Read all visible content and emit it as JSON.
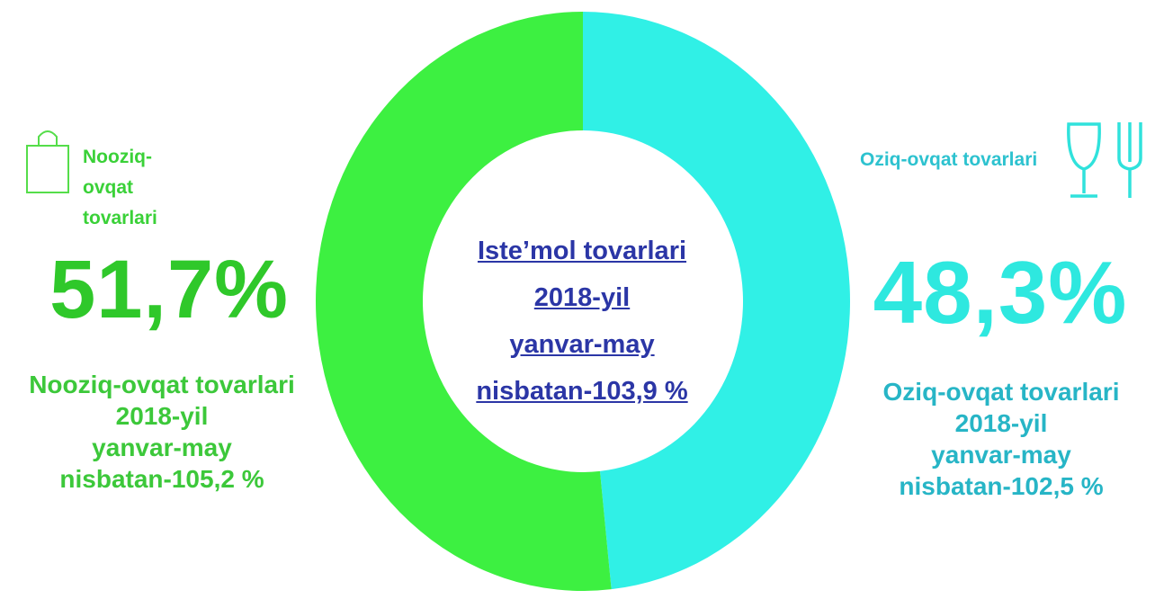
{
  "chart_data": {
    "type": "donut",
    "title_lines": [
      "Iste’mol tovarlari",
      "2018-yil",
      "yanvar-may",
      "nisbatan-103,9 %"
    ],
    "categories": [
      "Nooziq-ovqat tovarlari",
      "Oziq-ovqat tovarlari"
    ],
    "values": [
      51.7,
      48.3
    ],
    "value_labels": [
      "51,7%",
      "48,3%"
    ],
    "colors": [
      "#3df041",
      "#30f0e6"
    ],
    "annotations": [
      [
        "Nooziq-ovqat tovarlari",
        "2018-yil",
        "yanvar-may",
        "nisbatan-105,2 %"
      ],
      [
        "Oziq-ovqat tovarlari",
        "2018-yil",
        "yanvar-may",
        "nisbatan-102,5 %"
      ]
    ]
  }
}
